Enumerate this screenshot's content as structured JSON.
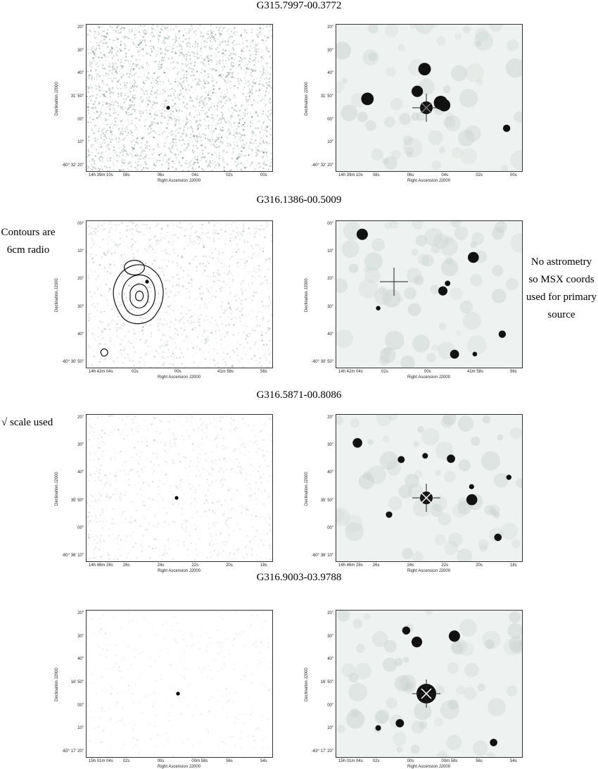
{
  "figure": {
    "rows": [
      {
        "id": "G315.7997-00.3772",
        "y_ticks": [
          "20\"",
          "30\"",
          "40\"",
          "31' 50\"",
          "00\"",
          "10\"",
          "-60° 32' 20\""
        ],
        "x_ticks": [
          "14h 39m 10s",
          "08s",
          "06s",
          "04s",
          "02s",
          "00s"
        ],
        "left": {
          "texture": "dense-noise",
          "contours": false
        },
        "right": {
          "marker": "plus-and-x"
        }
      },
      {
        "id": "G316.1386-00.5009",
        "y_ticks": [
          "00\"",
          "10\"",
          "20\"",
          "30\"",
          "40\"",
          "-60° 30' 50\""
        ],
        "x_ticks": [
          "14h 42m 04s",
          "02s",
          "00s",
          "41m 58s",
          "56s"
        ],
        "left": {
          "texture": "noise",
          "contours": true
        },
        "right": {
          "marker": "plus"
        }
      },
      {
        "id": "G316.5871-00.8086",
        "y_ticks": [
          "20\"",
          "30\"",
          "40\"",
          "35' 50\"",
          "00\"",
          "-60° 36' 10\""
        ],
        "x_ticks": [
          "14h 46m 28s",
          "26s",
          "24s",
          "22s",
          "20s",
          "18s"
        ],
        "left": {
          "texture": "faint-noise",
          "contours": false
        },
        "right": {
          "marker": "plus-and-x"
        }
      },
      {
        "id": "G316.9003-03.9788",
        "y_ticks": [
          "20\"",
          "30\"",
          "40\"",
          "16' 50\"",
          "00\"",
          "10\"",
          "-63° 17' 20\""
        ],
        "x_ticks": [
          "15h 01m 04s",
          "02s",
          "00s",
          "00m 58s",
          "56s",
          "54s"
        ],
        "left": {
          "texture": "very-faint-noise",
          "contours": false
        },
        "right": {
          "marker": "plus-and-x"
        }
      }
    ],
    "x_axis_label": "Right Ascension J2000",
    "y_axis_label": "Declination J2000"
  },
  "notes": {
    "contours": "Contours are 6cm radio",
    "astrometry": "No astrometry so MSX coords used for primary source",
    "scale": "√ scale used"
  }
}
